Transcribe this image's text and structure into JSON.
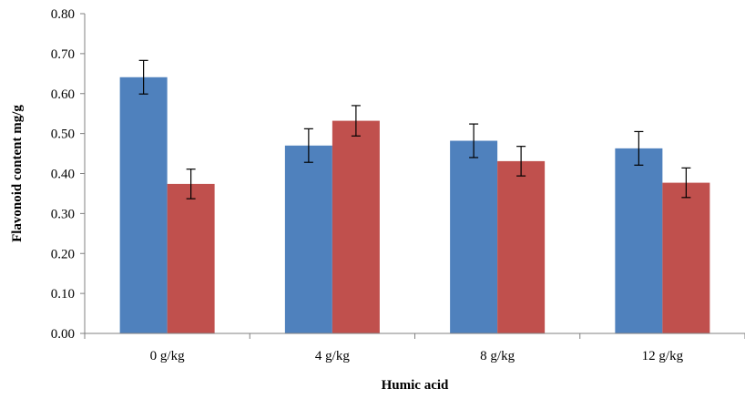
{
  "chart_data": {
    "type": "bar",
    "title": "",
    "xlabel": "Humic acid",
    "ylabel": "Flavonoid content mg/g",
    "categories": [
      "0 g/kg",
      "4 g/kg",
      "8 g/kg",
      "12 g/kg"
    ],
    "series": [
      {
        "color": "#4f81bd",
        "values": [
          0.641,
          0.47,
          0.482,
          0.463
        ],
        "errors": [
          0.042,
          0.042,
          0.042,
          0.042
        ]
      },
      {
        "color": "#c0504d",
        "values": [
          0.374,
          0.532,
          0.431,
          0.377
        ],
        "errors": [
          0.037,
          0.038,
          0.037,
          0.037
        ]
      }
    ],
    "ylim": [
      0,
      0.8
    ],
    "yticks": [
      "0.00",
      "0.10",
      "0.20",
      "0.30",
      "0.40",
      "0.50",
      "0.60",
      "0.70",
      "0.80"
    ],
    "grid": false,
    "legend": "none"
  }
}
